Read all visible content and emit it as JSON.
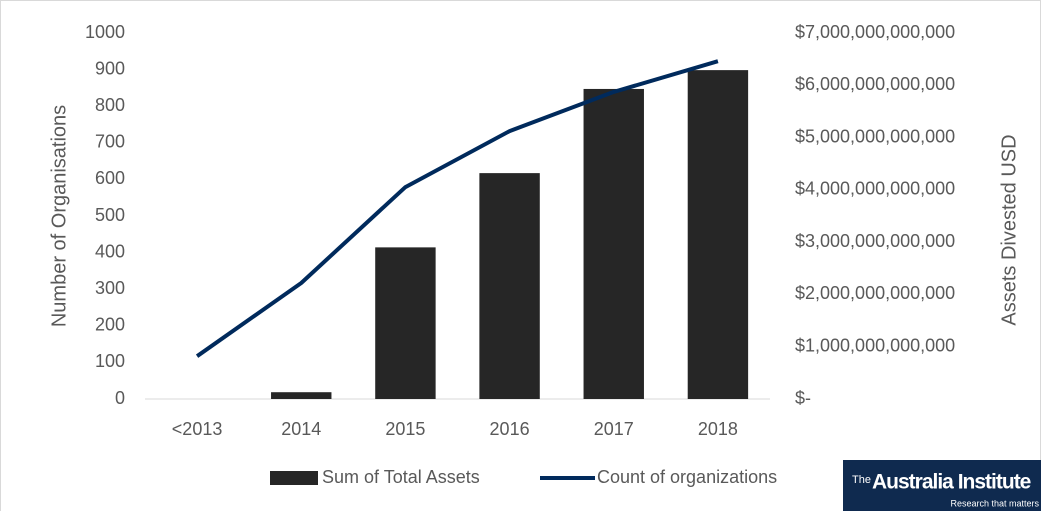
{
  "chart_data": {
    "type": "bar-line",
    "categories": [
      "<2013",
      "2014",
      "2015",
      "2016",
      "2017",
      "2018"
    ],
    "series": [
      {
        "name": "Sum of Total Assets",
        "type": "bar",
        "color": "#262626",
        "axis": "y2",
        "values": [
          0,
          130000000000,
          2900000000000,
          4320000000000,
          5930000000000,
          6290000000000
        ]
      },
      {
        "name": "Count of organizations",
        "type": "line",
        "color": "#002a5c",
        "axis": "y",
        "values": [
          117,
          317,
          579,
          732,
          839,
          923
        ]
      }
    ],
    "ylabel": "Number of Organisations",
    "y2label": "Assets Divested USD",
    "ylim": [
      0,
      1000
    ],
    "yticks": [
      0,
      100,
      200,
      300,
      400,
      500,
      600,
      700,
      800,
      900,
      1000
    ],
    "y2lim": [
      0,
      7000000000000
    ],
    "y2ticks": [
      {
        "value": 0,
        "label": "$-"
      },
      {
        "value": 1000000000000,
        "label": "$1,000,000,000,000"
      },
      {
        "value": 2000000000000,
        "label": "$2,000,000,000,000"
      },
      {
        "value": 3000000000000,
        "label": "$3,000,000,000,000"
      },
      {
        "value": 4000000000000,
        "label": "$4,000,000,000,000"
      },
      {
        "value": 5000000000000,
        "label": "$5,000,000,000,000"
      },
      {
        "value": 6000000000000,
        "label": "$6,000,000,000,000"
      },
      {
        "value": 7000000000000,
        "label": "$7,000,000,000,000"
      }
    ],
    "grid": false,
    "legend": "bottom"
  },
  "logo": {
    "prefix": "The",
    "name": "Australia Institute",
    "tagline": "Research that matters"
  }
}
